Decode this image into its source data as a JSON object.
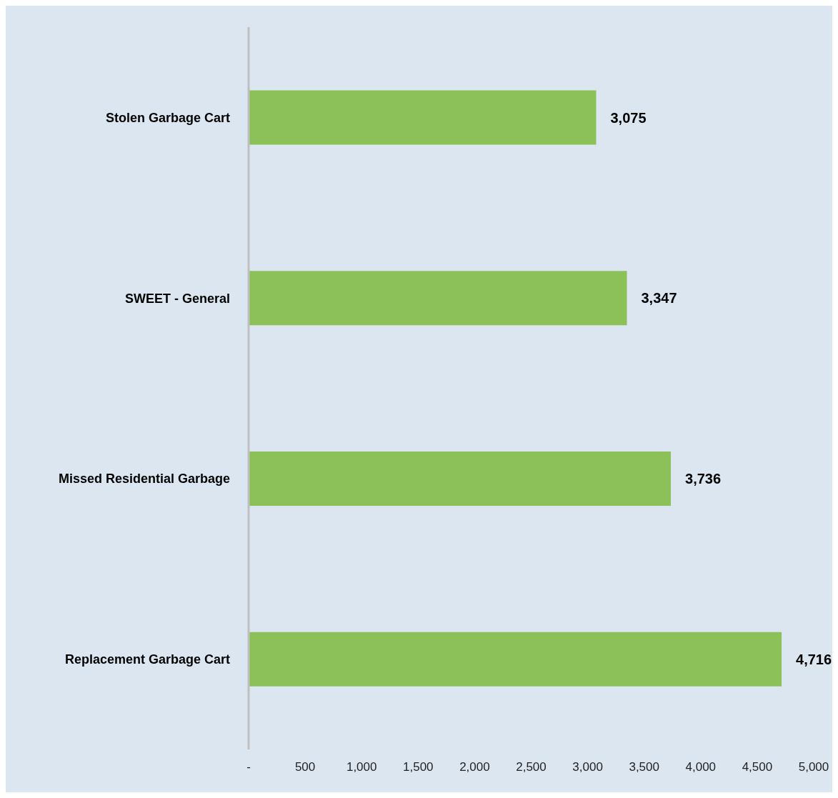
{
  "chart_data": {
    "type": "bar",
    "orientation": "horizontal",
    "categories": [
      "Stolen Garbage Cart",
      "SWEET - General",
      "Missed Residential Garbage",
      "Replacement Garbage Cart"
    ],
    "values": [
      3075,
      3347,
      3736,
      4716
    ],
    "color": "#8cc059",
    "xlim": [
      0,
      5000
    ],
    "xticks": [
      {
        "value": 0,
        "label": "-"
      },
      {
        "value": 500,
        "label": "500"
      },
      {
        "value": 1000,
        "label": "1,000"
      },
      {
        "value": 1500,
        "label": "1,500"
      },
      {
        "value": 2000,
        "label": "2,000"
      },
      {
        "value": 2500,
        "label": "2,500"
      },
      {
        "value": 3000,
        "label": "3,000"
      },
      {
        "value": 3500,
        "label": "3,500"
      },
      {
        "value": 4000,
        "label": "4,000"
      },
      {
        "value": 4500,
        "label": "4,500"
      },
      {
        "value": 5000,
        "label": "5,000"
      }
    ],
    "value_labels": [
      "3,075",
      "3,347",
      "3,736",
      "4,716"
    ],
    "grid": false,
    "legend": false
  }
}
